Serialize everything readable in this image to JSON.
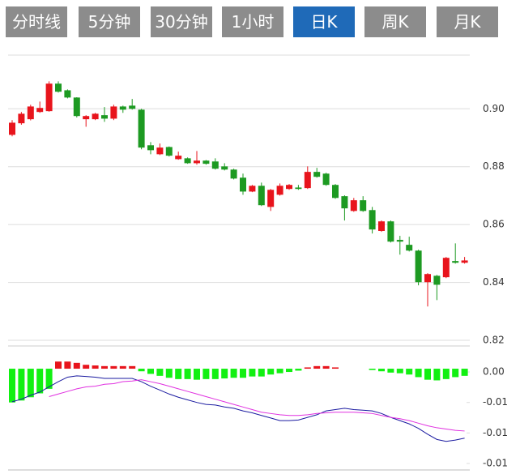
{
  "tabs": [
    "分时线",
    "5分钟",
    "30分钟",
    "1小时",
    "日K",
    "周K",
    "月K"
  ],
  "active_tab": 4,
  "chart_data": [
    {
      "type": "candlestick",
      "up_color": "#e8141c",
      "down_color": "#1d9a22",
      "grid": true,
      "ylim": [
        0.82,
        0.918
      ],
      "yticks": [
        {
          "value": 0.82,
          "label": "0.82"
        },
        {
          "value": 0.84,
          "label": "0.84"
        },
        {
          "value": 0.86,
          "label": "0.86"
        },
        {
          "value": 0.88,
          "label": "0.88"
        },
        {
          "value": 0.9,
          "label": "0.90"
        }
      ],
      "open": [
        0.891,
        0.895,
        0.8964,
        0.8989,
        0.8992,
        0.9087,
        0.9064,
        0.9039,
        0.8964,
        0.8964,
        0.8978,
        0.8966,
        0.9008,
        0.9011,
        0.8997,
        0.8874,
        0.8843,
        0.8868,
        0.8826,
        0.8829,
        0.8812,
        0.8821,
        0.8818,
        0.8801,
        0.879,
        0.8762,
        0.8714,
        0.8734,
        0.8661,
        0.8703,
        0.8723,
        0.8728,
        0.8726,
        0.8782,
        0.8776,
        0.8737,
        0.8698,
        0.8647,
        0.8684,
        0.865,
        0.8578,
        0.8611,
        0.8547,
        0.853,
        0.851,
        0.8401,
        0.8423,
        0.8418,
        0.8474,
        0.8468
      ],
      "high": [
        0.8961,
        0.8989,
        0.9014,
        0.9025,
        0.9095,
        0.9095,
        0.9067,
        0.904,
        0.8978,
        0.8986,
        0.9006,
        0.9014,
        0.9011,
        0.9034,
        0.9,
        0.8885,
        0.888,
        0.887,
        0.8852,
        0.8832,
        0.8854,
        0.8823,
        0.8829,
        0.8812,
        0.8793,
        0.8776,
        0.8737,
        0.8745,
        0.8723,
        0.8742,
        0.874,
        0.8737,
        0.8801,
        0.8796,
        0.8779,
        0.874,
        0.8701,
        0.8692,
        0.8698,
        0.8661,
        0.8614,
        0.8614,
        0.8561,
        0.8558,
        0.8513,
        0.8432,
        0.8426,
        0.8488,
        0.8535,
        0.8488
      ],
      "low": [
        0.8905,
        0.8945,
        0.896,
        0.8986,
        0.899,
        0.9056,
        0.9036,
        0.897,
        0.8938,
        0.8961,
        0.8955,
        0.8961,
        0.8986,
        0.8997,
        0.886,
        0.8843,
        0.884,
        0.8835,
        0.8824,
        0.881,
        0.8807,
        0.8807,
        0.879,
        0.8787,
        0.8756,
        0.8703,
        0.8712,
        0.8664,
        0.8647,
        0.87,
        0.872,
        0.872,
        0.8723,
        0.8762,
        0.8734,
        0.8689,
        0.8614,
        0.8644,
        0.8644,
        0.8569,
        0.8575,
        0.8538,
        0.8496,
        0.8507,
        0.839,
        0.8317,
        0.8339,
        0.8415,
        0.8465,
        0.8465
      ],
      "close": [
        0.8952,
        0.8983,
        0.9008,
        0.9003,
        0.9087,
        0.9059,
        0.9039,
        0.8975,
        0.8975,
        0.8983,
        0.8966,
        0.9008,
        0.8997,
        0.9,
        0.8866,
        0.8857,
        0.8866,
        0.8838,
        0.8838,
        0.8812,
        0.8821,
        0.881,
        0.8793,
        0.879,
        0.8759,
        0.8714,
        0.8734,
        0.8667,
        0.872,
        0.8734,
        0.8737,
        0.8723,
        0.8782,
        0.8765,
        0.8737,
        0.8692,
        0.8656,
        0.8684,
        0.8647,
        0.8583,
        0.8611,
        0.8541,
        0.8541,
        0.851,
        0.8401,
        0.8429,
        0.8392,
        0.8485,
        0.8468,
        0.8476
      ]
    },
    {
      "type": "macd",
      "up_color": "#e8141c",
      "down_color": "#12f012",
      "ylim": [
        -0.0156,
        0.0035
      ],
      "yticks": [
        {
          "value": -0.0146,
          "label": "-0.01"
        },
        {
          "value": -0.0099,
          "label": "-0.01"
        },
        {
          "value": -0.0052,
          "label": "-0.01"
        },
        {
          "value": -0.0005,
          "label": "0.00"
        }
      ],
      "histogram": [
        -0.0052,
        -0.0049,
        -0.0044,
        -0.0038,
        -0.0031,
        0.0011,
        0.0011,
        0.0009,
        0.0006,
        0.0005,
        0.0004,
        0.0004,
        0.0004,
        0.0004,
        -0.0004,
        -0.0008,
        -0.0011,
        -0.0014,
        -0.0016,
        -0.0016,
        -0.0017,
        -0.0016,
        -0.0016,
        -0.0015,
        -0.0014,
        -0.0014,
        -0.0012,
        -0.0012,
        -0.0009,
        -0.0007,
        -0.0005,
        -0.0003,
        0.0002,
        0.0004,
        0.0004,
        0.0002,
        0.0,
        0.0,
        0.0,
        -0.0002,
        -0.0004,
        -0.0006,
        -0.0007,
        -0.0009,
        -0.0013,
        -0.0017,
        -0.0018,
        -0.0016,
        -0.0013,
        -0.0011
      ],
      "series": [
        {
          "color": "#1a1aa0",
          "values": [
            -0.0051,
            -0.0047,
            -0.0041,
            -0.0036,
            -0.0028,
            -0.002,
            -0.0013,
            -0.0011,
            -0.0012,
            -0.0013,
            -0.0015,
            -0.0015,
            -0.0015,
            -0.0015,
            -0.002,
            -0.0027,
            -0.0033,
            -0.0039,
            -0.0044,
            -0.0048,
            -0.0052,
            -0.0055,
            -0.0056,
            -0.0059,
            -0.0061,
            -0.0065,
            -0.0068,
            -0.0072,
            -0.0076,
            -0.008,
            -0.008,
            -0.0079,
            -0.0075,
            -0.0071,
            -0.0065,
            -0.0063,
            -0.0061,
            -0.0063,
            -0.0064,
            -0.0065,
            -0.0069,
            -0.0075,
            -0.008,
            -0.0085,
            -0.0092,
            -0.0101,
            -0.0109,
            -0.0112,
            -0.011,
            -0.0107
          ]
        },
        {
          "color": "#e030e0",
          "values": [
            null,
            null,
            null,
            null,
            -0.0043,
            -0.0039,
            -0.0035,
            -0.0031,
            -0.0028,
            -0.0027,
            -0.0024,
            -0.0023,
            -0.002,
            -0.0019,
            -0.0017,
            -0.002,
            -0.0023,
            -0.0027,
            -0.0031,
            -0.0035,
            -0.0039,
            -0.0043,
            -0.0047,
            -0.0051,
            -0.0055,
            -0.0059,
            -0.0063,
            -0.0067,
            -0.0069,
            -0.0071,
            -0.0072,
            -0.0072,
            -0.0071,
            -0.0069,
            -0.0068,
            -0.0067,
            -0.0067,
            -0.0067,
            -0.0068,
            -0.0069,
            -0.0072,
            -0.0075,
            -0.0077,
            -0.008,
            -0.0084,
            -0.0088,
            -0.0091,
            -0.0093,
            -0.0095,
            -0.0096
          ]
        }
      ]
    }
  ]
}
